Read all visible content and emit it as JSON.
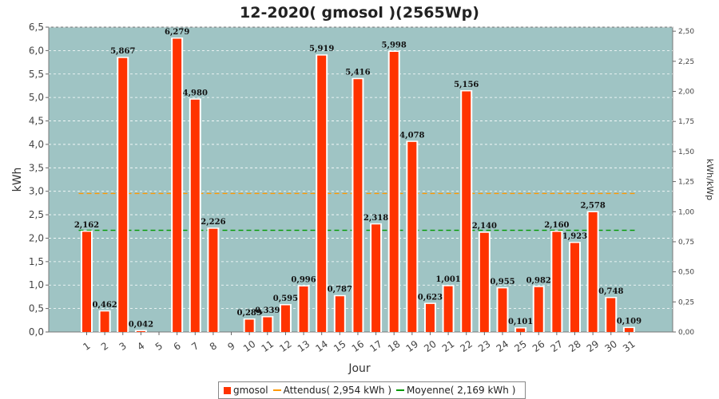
{
  "chart_data": {
    "type": "bar",
    "title": "12-2020( gmosol )(2565Wp)",
    "xlabel": "Jour",
    "ylabel": "kWh",
    "ylabel_right": "kWh/kWp",
    "ylim": [
      0,
      6.5
    ],
    "ylim_right": [
      0,
      2.534
    ],
    "y_ticks": [
      "0,0",
      "0,5",
      "1,0",
      "1,5",
      "2,0",
      "2,5",
      "3,0",
      "3,5",
      "4,0",
      "4,5",
      "5,0",
      "5,5",
      "6,0",
      "6,5"
    ],
    "y_ticks_right": [
      "0,00",
      "0,25",
      "0,50",
      "0,75",
      "1,00",
      "1,25",
      "1,50",
      "1,75",
      "2,00",
      "2,25",
      "2,50"
    ],
    "categories": [
      "1",
      "2",
      "3",
      "4",
      "5",
      "6",
      "7",
      "8",
      "9",
      "10",
      "11",
      "12",
      "13",
      "14",
      "15",
      "16",
      "17",
      "18",
      "19",
      "20",
      "21",
      "22",
      "23",
      "24",
      "25",
      "26",
      "27",
      "28",
      "29",
      "30",
      "31"
    ],
    "series": [
      {
        "name": "gmosol",
        "color": "#ff3300",
        "values": [
          2.162,
          0.462,
          5.867,
          0.042,
          0,
          6.279,
          4.98,
          2.226,
          0,
          0.289,
          0.339,
          0.595,
          0.996,
          5.919,
          0.787,
          5.416,
          2.318,
          5.998,
          4.078,
          0.623,
          1.001,
          5.156,
          2.14,
          0.955,
          0.101,
          0.982,
          2.16,
          1.923,
          2.578,
          0.748,
          0.109
        ],
        "labels": [
          "2,162",
          "0,462",
          "5,867",
          "0,042",
          "",
          "6,279",
          "4,980",
          "2,226",
          "",
          "0,289",
          "0,339",
          "0,595",
          "0,996",
          "5,919",
          "0,787",
          "5,416",
          "2,318",
          "5,998",
          "4,078",
          "0,623",
          "1,001",
          "5,156",
          "2,140",
          "0,955",
          "0,101",
          "0,982",
          "2,160",
          "1,923",
          "2,578",
          "0,748",
          "0,109"
        ]
      }
    ],
    "reference_lines": [
      {
        "name": "Attendus( 2,954 kWh )",
        "value": 2.954,
        "color": "#ff9900",
        "style": "dashed"
      },
      {
        "name": "Moyenne( 2,169 kWh )",
        "value": 2.169,
        "color": "#009900",
        "style": "dashed"
      }
    ],
    "grid": true,
    "legend": "bottom",
    "colors": {
      "plot_bg": "#9fc4c4",
      "bar": "#ff3300",
      "bar_edge": "#ffffff"
    }
  }
}
